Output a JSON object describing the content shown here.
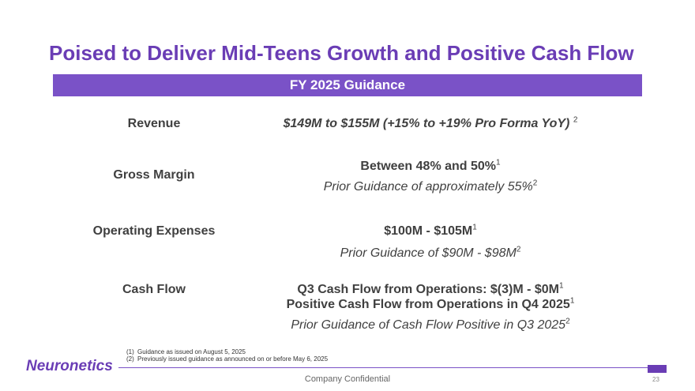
{
  "title": "Poised to Deliver Mid-Teens Growth and Positive Cash Flow",
  "banner": "FY 2025 Guidance",
  "rows": {
    "revenue": {
      "label": "Revenue",
      "value": "$149M to $155M (+15% to +19% Pro Forma YoY)",
      "sup": "2"
    },
    "gross_margin": {
      "label": "Gross Margin",
      "value": "Between 48% and 50%",
      "sup": "1",
      "prior": "Prior Guidance of approximately 55%",
      "prior_sup": "2"
    },
    "opex": {
      "label": "Operating Expenses",
      "value": "$100M - $105M",
      "sup": "1",
      "prior": "Prior Guidance of $90M - $98M",
      "prior_sup": "2"
    },
    "cash_flow": {
      "label": "Cash Flow",
      "value1": "Q3 Cash Flow from Operations: $(3)M - $0M",
      "sup1": "1",
      "value2": "Positive Cash Flow from Operations in Q4 2025",
      "sup2": "1",
      "prior": "Prior Guidance of Cash Flow Positive in Q3 2025",
      "prior_sup": "2"
    }
  },
  "footnotes": [
    {
      "num": "(1)",
      "text": "Guidance as issued on August 5, 2025"
    },
    {
      "num": "(2)",
      "text": "Previously issued guidance as announced on or before May 6, 2025"
    }
  ],
  "logo": "Neuronetics",
  "confidential": "Company Confidential",
  "page": "23",
  "colors": {
    "accent": "#6a3db5",
    "banner": "#7a52c7"
  }
}
